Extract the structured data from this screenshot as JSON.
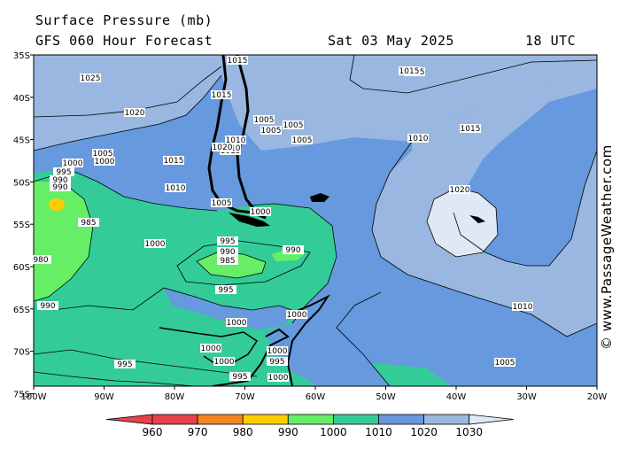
{
  "header": {
    "title": "Surface Pressure (mb)",
    "forecast": "GFS 060 Hour Forecast",
    "date": "Sat 03 May 2025",
    "time": "18 UTC"
  },
  "credit": "© www.PassageWeather.com",
  "axes": {
    "lat_labels": [
      "35S",
      "40S",
      "45S",
      "50S",
      "55S",
      "60S",
      "65S",
      "70S",
      "75S"
    ],
    "lon_labels": [
      "100W",
      "90W",
      "80W",
      "70W",
      "60W",
      "50W",
      "40W",
      "30W",
      "20W"
    ]
  },
  "legend": {
    "ticks": [
      "960",
      "970",
      "980",
      "990",
      "1000",
      "1010",
      "1020",
      "1030"
    ],
    "colors": [
      "#e8414e",
      "#f5841f",
      "#ffcc00",
      "#66ee66",
      "#33cc99",
      "#6699dd",
      "#99b7e0",
      "#e0e8f5"
    ]
  },
  "isobar_labels": [
    "1015",
    "1025",
    "1015",
    "1020",
    "1015",
    "1015",
    "1005",
    "1005",
    "1005",
    "1010",
    "1010",
    "1015",
    "1005",
    "1000",
    "1000",
    "995",
    "990",
    "990",
    "1010",
    "1015",
    "1005",
    "1000",
    "1000",
    "1020",
    "985",
    "995",
    "990",
    "985",
    "990",
    "980",
    "1000",
    "995",
    "995",
    "1010",
    "990",
    "1000",
    "1000",
    "1000",
    "995",
    "1000",
    "1000",
    "1005",
    "995",
    "990",
    "990",
    "995",
    "1010",
    "1005",
    "1015",
    "1020"
  ]
}
